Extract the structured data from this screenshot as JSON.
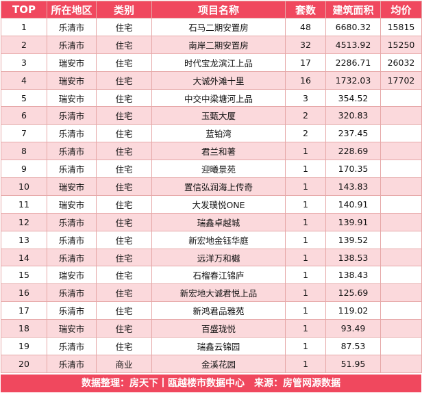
{
  "headers": [
    "TOP",
    "所在地区",
    "类别",
    "项目名称",
    "套数",
    "建筑面积",
    "均价"
  ],
  "rows": [
    [
      "1",
      "乐清市",
      "住宅",
      "石马二期安置房",
      "48",
      "6680.32",
      "15815"
    ],
    [
      "2",
      "乐清市",
      "住宅",
      "南岸二期安置房",
      "32",
      "4513.92",
      "15250"
    ],
    [
      "3",
      "瑞安市",
      "住宅",
      "时代宝龙滨江上品",
      "17",
      "2286.71",
      "26032"
    ],
    [
      "4",
      "瑞安市",
      "住宅",
      "大诚外滩十里",
      "16",
      "1732.03",
      "17702"
    ],
    [
      "5",
      "瑞安市",
      "住宅",
      "中交中梁塘河上品",
      "3",
      "354.52",
      ""
    ],
    [
      "6",
      "乐清市",
      "住宅",
      "玉甄大厦",
      "2",
      "320.83",
      ""
    ],
    [
      "7",
      "乐清市",
      "住宅",
      "蓝铂湾",
      "2",
      "237.45",
      ""
    ],
    [
      "8",
      "乐清市",
      "住宅",
      "君兰和著",
      "1",
      "228.69",
      ""
    ],
    [
      "9",
      "乐清市",
      "住宅",
      "迎曦景苑",
      "1",
      "170.35",
      ""
    ],
    [
      "10",
      "瑞安市",
      "住宅",
      "置信弘润海上传奇",
      "1",
      "143.83",
      ""
    ],
    [
      "11",
      "瑞安市",
      "住宅",
      "大发璞悦ONE",
      "1",
      "140.91",
      ""
    ],
    [
      "12",
      "乐清市",
      "住宅",
      "瑞鑫卓越城",
      "1",
      "139.91",
      ""
    ],
    [
      "13",
      "乐清市",
      "住宅",
      "新宏地金钰华庭",
      "1",
      "139.52",
      ""
    ],
    [
      "14",
      "乐清市",
      "住宅",
      "远洋万和樾",
      "1",
      "138.53",
      ""
    ],
    [
      "15",
      "瑞安市",
      "住宅",
      "石榴春江锦庐",
      "1",
      "138.43",
      ""
    ],
    [
      "16",
      "乐清市",
      "住宅",
      "新宏地大诚君悦上品",
      "1",
      "125.69",
      ""
    ],
    [
      "17",
      "乐清市",
      "住宅",
      "新鸿君品雅苑",
      "1",
      "119.02",
      ""
    ],
    [
      "18",
      "瑞安市",
      "住宅",
      "百盛珑悦",
      "1",
      "93.49",
      ""
    ],
    [
      "19",
      "乐清市",
      "住宅",
      "瑞鑫云锦园",
      "1",
      "87.53",
      ""
    ],
    [
      "20",
      "乐清市",
      "商业",
      "金溪花园",
      "1",
      "51.95",
      ""
    ]
  ],
  "footer": "数据整理：房天下丨瓯越楼市数据中心　来源：房管网源数据"
}
